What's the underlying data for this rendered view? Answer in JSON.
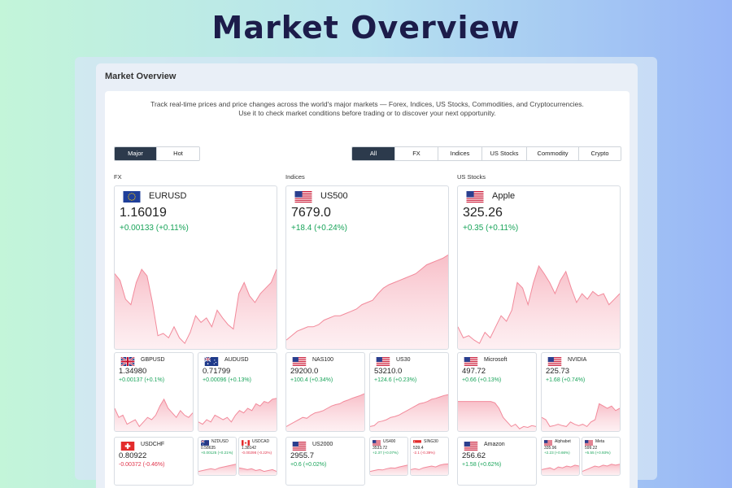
{
  "hero": {
    "title": "Market Overview"
  },
  "window": {
    "title": "Market Overview"
  },
  "description": {
    "line1": "Track real-time prices and price changes across the world's major markets — Forex, Indices, US Stocks, Commodities, and Cryptocurrencies.",
    "line2": "Use it to check market conditions before trading or to discover your next opportunity."
  },
  "toggle": {
    "options": [
      "Major",
      "Hot"
    ],
    "selected": "Major"
  },
  "filters": {
    "options": [
      "All",
      "FX",
      "Indices",
      "US Stocks",
      "Commodity",
      "Crypto"
    ],
    "selected": "All"
  },
  "colors": {
    "positive": "#19a45a",
    "negative": "#e0334a",
    "chart_line": "#f28a9b",
    "chart_fill": "#fbd3da",
    "active_tab": "#2c3a4c"
  },
  "sections": [
    {
      "label": "FX",
      "main": {
        "symbol": "EURUSD",
        "flag": "eu",
        "price": "1.16019",
        "change": "+0.00133 (+0.11%)",
        "direction": "up",
        "spark": [
          0.68,
          0.62,
          0.45,
          0.4,
          0.6,
          0.72,
          0.66,
          0.42,
          0.12,
          0.14,
          0.1,
          0.2,
          0.1,
          0.05,
          0.15,
          0.3,
          0.24,
          0.28,
          0.2,
          0.35,
          0.28,
          0.22,
          0.18,
          0.5,
          0.6,
          0.48,
          0.42,
          0.5,
          0.55,
          0.6,
          0.72
        ]
      },
      "small": [
        {
          "symbol": "GBPUSD",
          "flag": "gb",
          "price": "1.34980",
          "change": "+0.00137 (+0.1%)",
          "direction": "up",
          "spark": [
            0.5,
            0.3,
            0.35,
            0.15,
            0.2,
            0.25,
            0.1,
            0.2,
            0.3,
            0.25,
            0.35,
            0.55,
            0.7,
            0.5,
            0.4,
            0.3,
            0.45,
            0.35,
            0.3,
            0.4
          ]
        },
        {
          "symbol": "AUDUSD",
          "flag": "au",
          "price": "0.71799",
          "change": "+0.00096 (+0.13%)",
          "direction": "up",
          "spark": [
            0.2,
            0.15,
            0.25,
            0.2,
            0.35,
            0.3,
            0.25,
            0.3,
            0.2,
            0.35,
            0.45,
            0.4,
            0.5,
            0.45,
            0.6,
            0.55,
            0.65,
            0.62,
            0.7,
            0.72
          ]
        },
        {
          "symbol": "USDCHF",
          "flag": "ch",
          "price": "0.80922",
          "change": "-0.00372 (-0.46%)",
          "direction": "down"
        },
        {
          "symbol": "NZDUSD",
          "flag": "nz",
          "price": "0.58635",
          "change": "+0.00125 (+0.21%)",
          "direction": "up",
          "spark": [
            0.2,
            0.25,
            0.3,
            0.35,
            0.3,
            0.4,
            0.45,
            0.5,
            0.55,
            0.6
          ]
        },
        {
          "symbol": "USDCAD",
          "flag": "ca",
          "price": "1.38142",
          "change": "-0.00298 (-0.22%)",
          "direction": "down",
          "spark": [
            0.4,
            0.35,
            0.3,
            0.35,
            0.25,
            0.3,
            0.2,
            0.25,
            0.3,
            0.2
          ]
        }
      ]
    },
    {
      "label": "Indices",
      "main": {
        "symbol": "US500",
        "flag": "us",
        "price": "7679.0",
        "change": "+18.4 (+0.24%)",
        "direction": "up",
        "spark": [
          0.08,
          0.12,
          0.16,
          0.18,
          0.2,
          0.2,
          0.22,
          0.26,
          0.28,
          0.3,
          0.3,
          0.32,
          0.34,
          0.36,
          0.4,
          0.42,
          0.44,
          0.5,
          0.55,
          0.58,
          0.6,
          0.62,
          0.64,
          0.66,
          0.68,
          0.72,
          0.76,
          0.78,
          0.8,
          0.82,
          0.85
        ]
      },
      "small": [
        {
          "symbol": "NAS100",
          "flag": "us",
          "price": "29200.0",
          "change": "+100.4 (+0.34%)",
          "direction": "up",
          "spark": [
            0.1,
            0.15,
            0.2,
            0.25,
            0.3,
            0.28,
            0.35,
            0.4,
            0.42,
            0.45,
            0.5,
            0.55,
            0.58,
            0.6,
            0.65,
            0.68,
            0.72,
            0.75,
            0.78,
            0.82
          ]
        },
        {
          "symbol": "US30",
          "flag": "us",
          "price": "53210.0",
          "change": "+124.6 (+0.23%)",
          "direction": "up",
          "spark": [
            0.1,
            0.12,
            0.2,
            0.22,
            0.25,
            0.3,
            0.32,
            0.35,
            0.4,
            0.45,
            0.5,
            0.55,
            0.6,
            0.62,
            0.65,
            0.7,
            0.72,
            0.75,
            0.78,
            0.8
          ]
        },
        {
          "symbol": "US2000",
          "flag": "us",
          "price": "2955.7",
          "change": "+0.6 (+0.02%)",
          "direction": "up"
        },
        {
          "symbol": "US400",
          "flag": "us",
          "price": "3533.72",
          "change": "+2.37 (+0.07%)",
          "direction": "up",
          "spark": [
            0.2,
            0.25,
            0.3,
            0.28,
            0.35,
            0.4,
            0.38,
            0.45,
            0.5,
            0.55
          ]
        },
        {
          "symbol": "SING30",
          "flag": "sg",
          "price": "539.4",
          "change": "-2.1 (-0.39%)",
          "direction": "down",
          "spark": [
            0.3,
            0.35,
            0.3,
            0.4,
            0.45,
            0.5,
            0.45,
            0.55,
            0.6,
            0.62
          ]
        }
      ]
    },
    {
      "label": "US Stocks",
      "main": {
        "symbol": "Apple",
        "flag": "us",
        "price": "325.26",
        "change": "+0.35 (+0.11%)",
        "direction": "up",
        "spark": [
          0.2,
          0.1,
          0.12,
          0.08,
          0.05,
          0.15,
          0.1,
          0.2,
          0.3,
          0.25,
          0.35,
          0.6,
          0.55,
          0.4,
          0.6,
          0.75,
          0.68,
          0.6,
          0.5,
          0.62,
          0.7,
          0.55,
          0.42,
          0.5,
          0.45,
          0.52,
          0.48,
          0.5,
          0.4,
          0.45,
          0.5
        ]
      },
      "small": [
        {
          "symbol": "Microsoft",
          "flag": "us",
          "price": "497.72",
          "change": "+0.66 (+0.13%)",
          "direction": "up",
          "spark": [
            0.65,
            0.65,
            0.65,
            0.65,
            0.65,
            0.65,
            0.65,
            0.65,
            0.65,
            0.62,
            0.5,
            0.3,
            0.2,
            0.1,
            0.15,
            0.05,
            0.1,
            0.08,
            0.12,
            0.1
          ]
        },
        {
          "symbol": "NVIDIA",
          "flag": "us",
          "price": "225.73",
          "change": "+1.68 (+0.74%)",
          "direction": "up",
          "spark": [
            0.3,
            0.25,
            0.1,
            0.12,
            0.15,
            0.12,
            0.1,
            0.2,
            0.15,
            0.12,
            0.15,
            0.1,
            0.2,
            0.25,
            0.6,
            0.55,
            0.5,
            0.55,
            0.45,
            0.5
          ]
        },
        {
          "symbol": "Amazon",
          "flag": "us",
          "price": "256.62",
          "change": "+1.58 (+0.62%)",
          "direction": "up"
        },
        {
          "symbol": "Alphabet",
          "flag": "us",
          "price": "335.96",
          "change": "+2.23 (+0.66%)",
          "direction": "up",
          "spark": [
            0.3,
            0.35,
            0.4,
            0.3,
            0.45,
            0.4,
            0.5,
            0.45,
            0.55,
            0.5
          ]
        },
        {
          "symbol": "Meta",
          "flag": "us",
          "price": "599.22",
          "change": "+5.55 (+0.93%)",
          "direction": "up",
          "spark": [
            0.2,
            0.3,
            0.4,
            0.5,
            0.45,
            0.55,
            0.5,
            0.6,
            0.55,
            0.6
          ]
        }
      ]
    }
  ]
}
